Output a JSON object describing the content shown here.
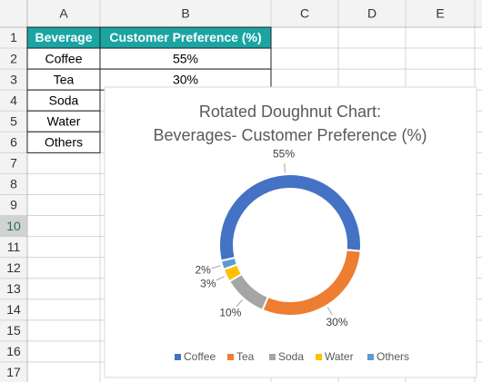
{
  "spreadsheet": {
    "columns": [
      "A",
      "B",
      "C",
      "D",
      "E"
    ],
    "rows": [
      1,
      2,
      3,
      4,
      5,
      6,
      7,
      8,
      9,
      10,
      11,
      12,
      13,
      14,
      15,
      16,
      17
    ],
    "cells": [
      [
        "Beverage",
        "Customer Preference (%)"
      ],
      [
        "Coffee",
        "55%"
      ],
      [
        "Tea",
        "30%"
      ],
      [
        "Soda"
      ],
      [
        "Water"
      ],
      [
        "Others"
      ]
    ]
  },
  "chart_data": {
    "type": "doughnut",
    "title": [
      "Rotated Doughnut Chart:",
      "Beverages- Customer Preference (%)"
    ],
    "categories": [
      "Coffee",
      "Tea",
      "Soda",
      "Water",
      "Others"
    ],
    "values": [
      55,
      30,
      10,
      3,
      2
    ],
    "value_labels": [
      "55%",
      "30%",
      "10%",
      "3%",
      "2%"
    ],
    "colors": [
      "#4472c4",
      "#ed7d31",
      "#a5a5a5",
      "#ffc000",
      "#5b9bd5"
    ],
    "first_slice_angle": 257,
    "legend": "bottom"
  }
}
